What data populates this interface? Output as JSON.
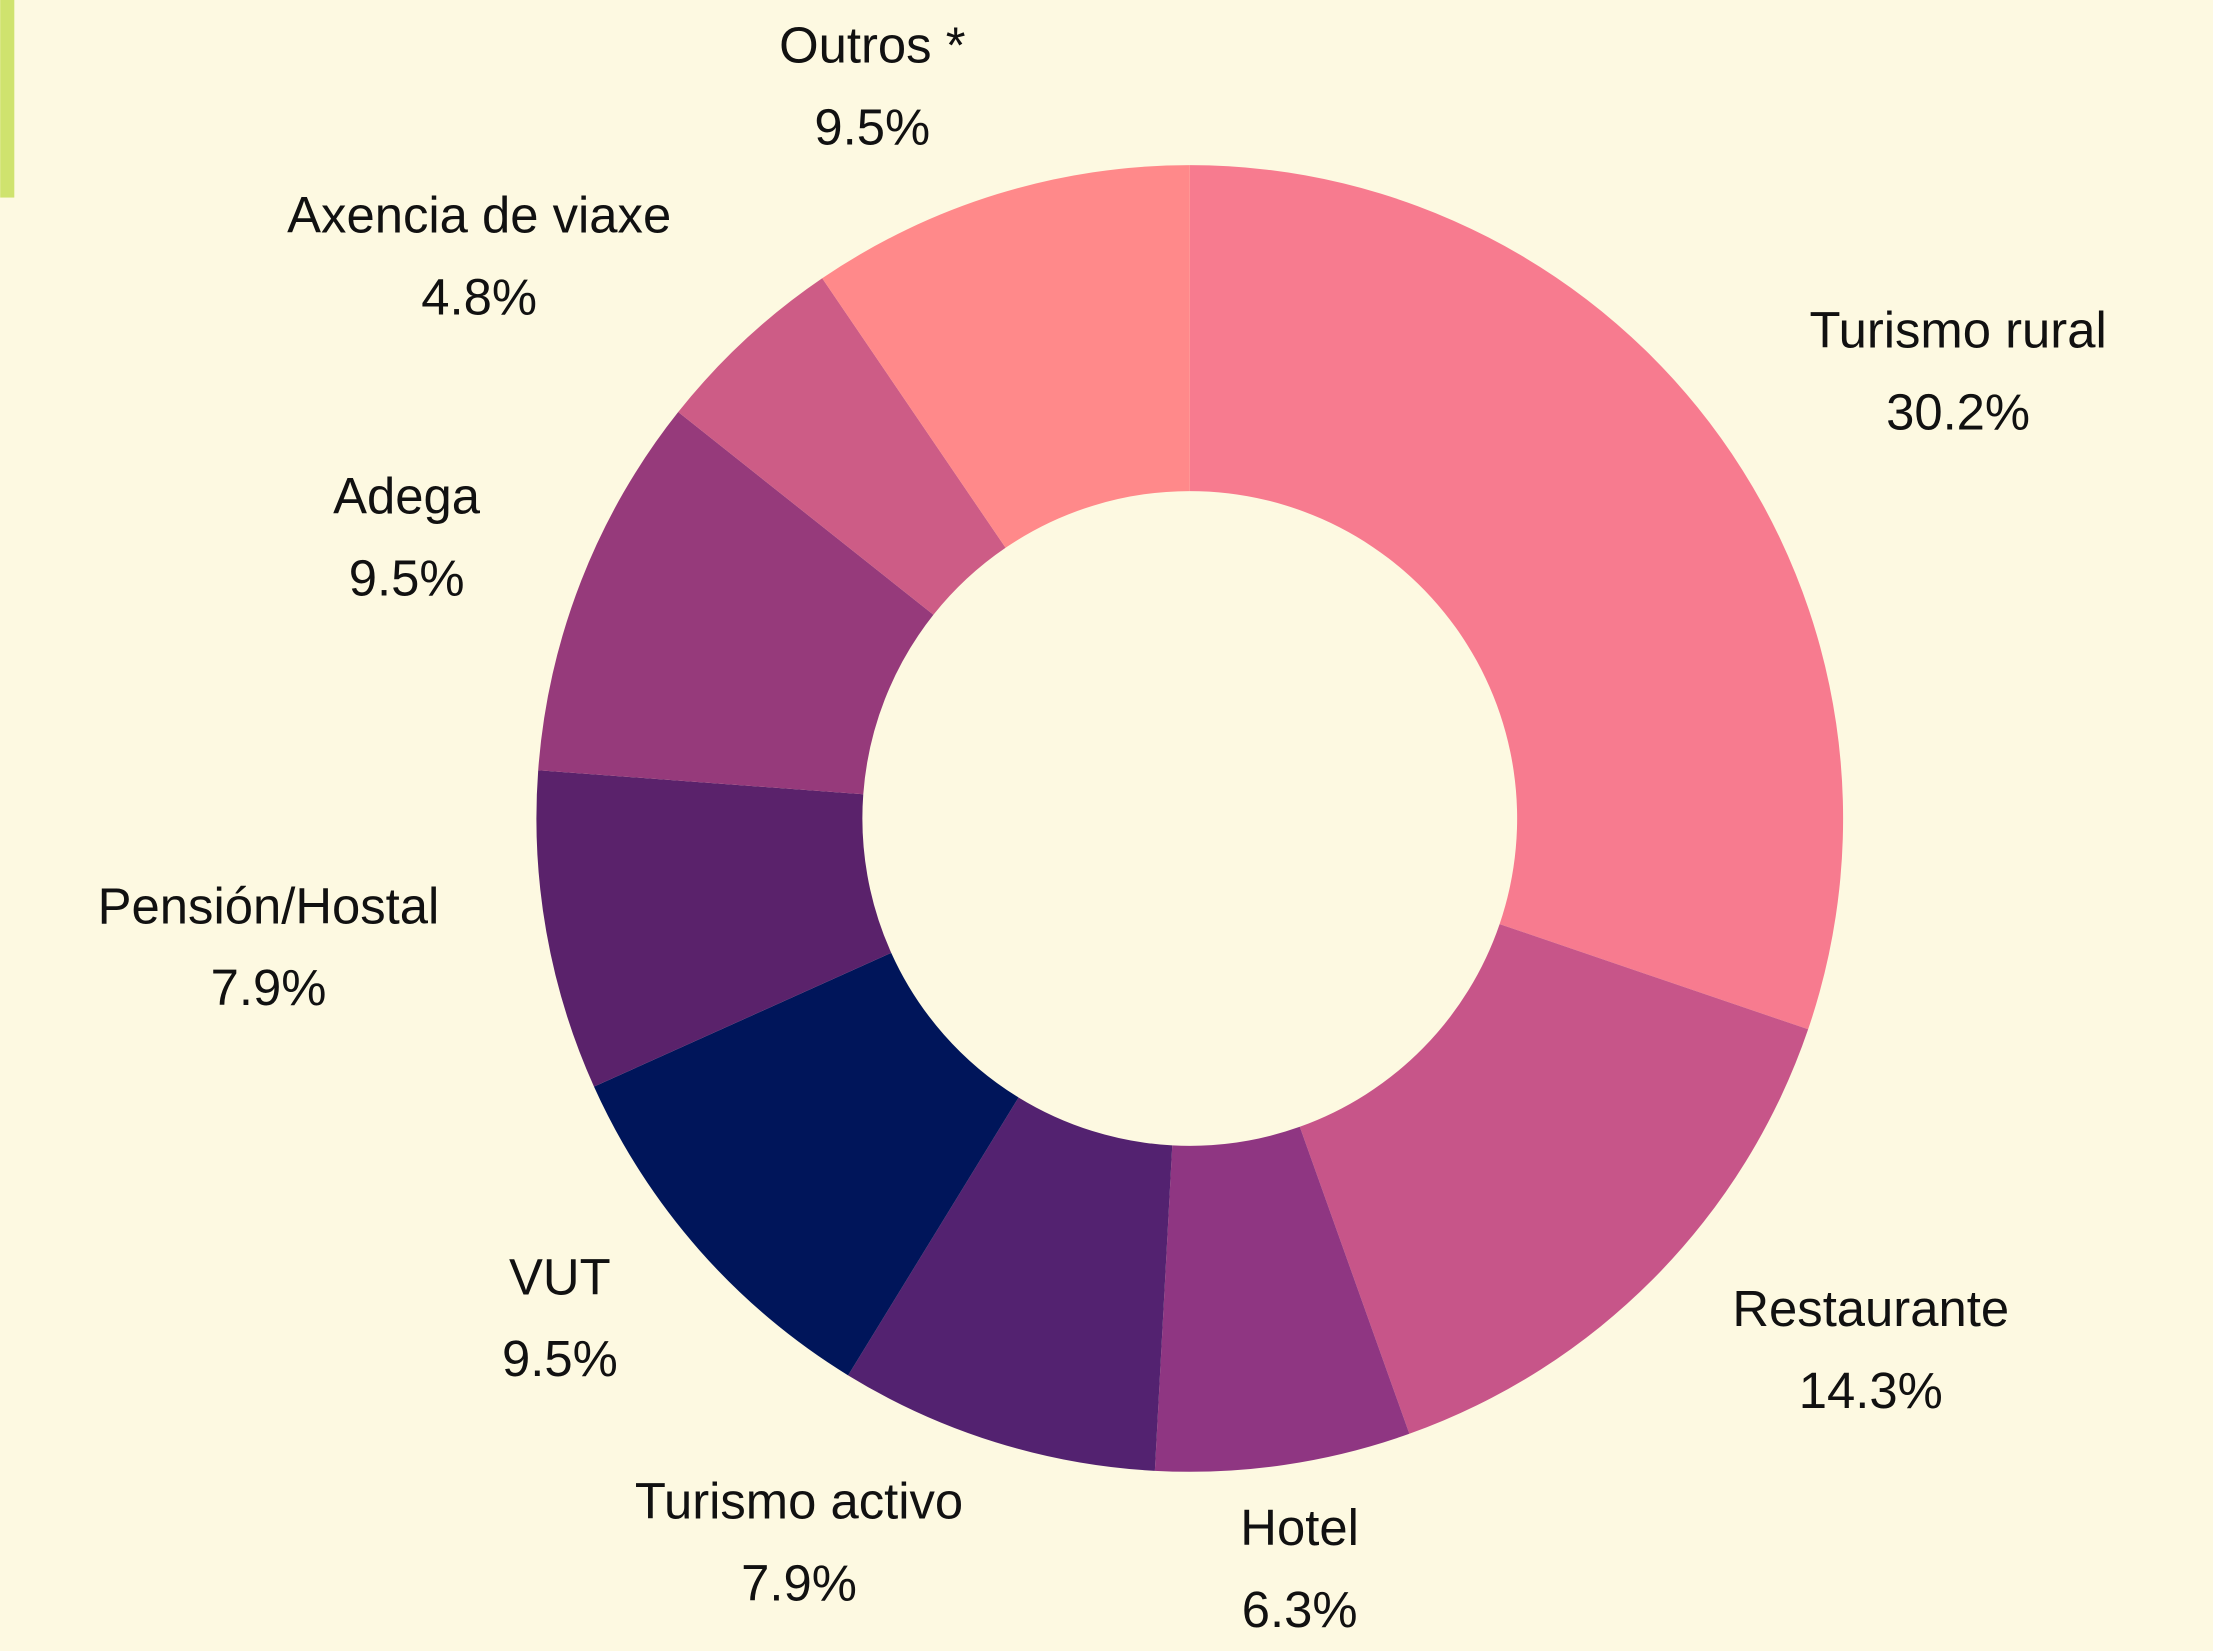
{
  "chart_data": {
    "type": "donut",
    "categories": [
      "Turismo rural",
      "Restaurante",
      "Hotel",
      "Turismo activo",
      "VUT",
      "Pensión/Hostal",
      "Adega",
      "Axencia de viaxe",
      "Outros *"
    ],
    "values": [
      30.2,
      14.3,
      6.3,
      7.9,
      9.5,
      7.9,
      9.5,
      4.8,
      9.5
    ],
    "value_labels": [
      "30.2%",
      "14.3%",
      "6.3%",
      "7.9%",
      "9.5%",
      "7.9%",
      "9.5%",
      "4.8%",
      "9.5%"
    ],
    "colors": [
      "#f77b8f",
      "#c75589",
      "#8f3682",
      "#532270",
      "#00155a",
      "#5a226b",
      "#963a7b",
      "#cd5c86",
      "#ff898a"
    ]
  }
}
